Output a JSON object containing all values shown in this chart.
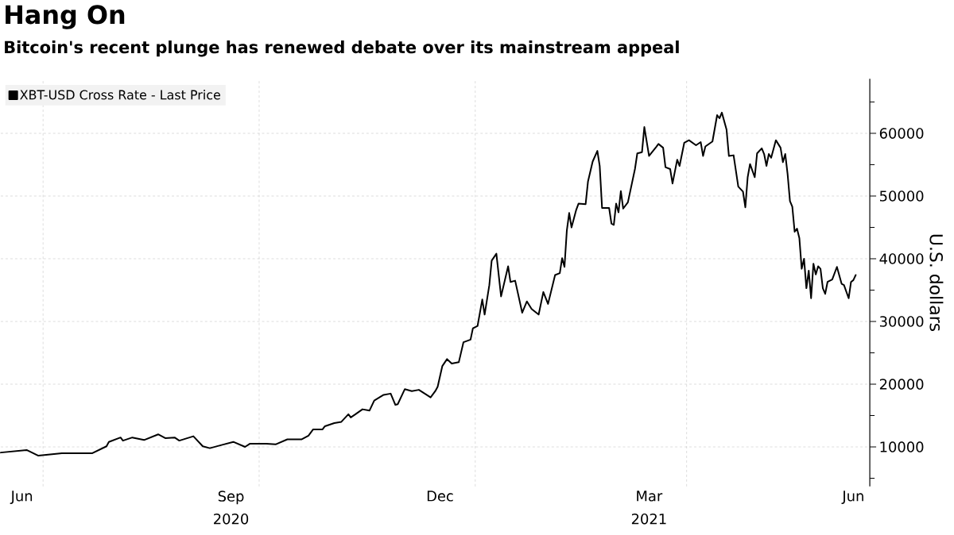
{
  "chart_data": {
    "type": "line",
    "title": "Hang On",
    "subtitle": "Bitcoin's recent plunge has renewed debate over its mainstream appeal",
    "ylabel": "U.S. dollars",
    "annotations": [
      "2020",
      "2021"
    ],
    "x": [
      "2020-06-13",
      "2020-06-24",
      "2020-06-29",
      "2020-07-09",
      "2020-07-22",
      "2020-07-28",
      "2020-07-29",
      "2020-08-03",
      "2020-08-04",
      "2020-08-08",
      "2020-08-13",
      "2020-08-19",
      "2020-08-22",
      "2020-08-26",
      "2020-08-28",
      "2020-09-03",
      "2020-09-07",
      "2020-09-10",
      "2020-09-15",
      "2020-09-20",
      "2020-09-25",
      "2020-09-27",
      "2020-10-04",
      "2020-10-08",
      "2020-10-13",
      "2020-10-19",
      "2020-10-22",
      "2020-10-24",
      "2020-10-28",
      "2020-10-29",
      "2020-11-02",
      "2020-11-05",
      "2020-11-08",
      "2020-11-09",
      "2020-11-11",
      "2020-11-14",
      "2020-11-17",
      "2020-11-19",
      "2020-11-23",
      "2020-11-26",
      "2020-11-28",
      "2020-11-29",
      "2020-12-02",
      "2020-12-05",
      "2020-12-08",
      "2020-12-13",
      "2020-12-15",
      "2020-12-16",
      "2020-12-18",
      "2020-12-20",
      "2020-12-22",
      "2020-12-25",
      "2020-12-27",
      "2020-12-30",
      "2020-12-31",
      "2021-01-02",
      "2021-01-04",
      "2021-01-05",
      "2021-01-07",
      "2021-01-08",
      "2021-01-10",
      "2021-01-12",
      "2021-01-15",
      "2021-01-16",
      "2021-01-18",
      "2021-01-21",
      "2021-01-23",
      "2021-01-25",
      "2021-01-28",
      "2021-01-30",
      "2021-02-01",
      "2021-02-04",
      "2021-02-06",
      "2021-02-07",
      "2021-02-08",
      "2021-02-09",
      "2021-02-10",
      "2021-02-11",
      "2021-02-13",
      "2021-02-14",
      "2021-02-17",
      "2021-02-18",
      "2021-02-20",
      "2021-02-22",
      "2021-02-23",
      "2021-02-24",
      "2021-02-27",
      "2021-02-28",
      "2021-03-01",
      "2021-03-02",
      "2021-03-03",
      "2021-03-04",
      "2021-03-05",
      "2021-03-07",
      "2021-03-10",
      "2021-03-11",
      "2021-03-13",
      "2021-03-14",
      "2021-03-16",
      "2021-03-19",
      "2021-03-20",
      "2021-03-22",
      "2021-03-23",
      "2021-03-25",
      "2021-03-26",
      "2021-03-28",
      "2021-03-29",
      "2021-03-31",
      "2021-04-02",
      "2021-04-05",
      "2021-04-07",
      "2021-04-08",
      "2021-04-09",
      "2021-04-12",
      "2021-04-14",
      "2021-04-15",
      "2021-04-16",
      "2021-04-18",
      "2021-04-19",
      "2021-04-21",
      "2021-04-23",
      "2021-04-25",
      "2021-04-26",
      "2021-04-27",
      "2021-04-28",
      "2021-04-30",
      "2021-05-01",
      "2021-05-03",
      "2021-05-04",
      "2021-05-05",
      "2021-05-06",
      "2021-05-07",
      "2021-05-09",
      "2021-05-11",
      "2021-05-12",
      "2021-05-13",
      "2021-05-14",
      "2021-05-15",
      "2021-05-16",
      "2021-05-17",
      "2021-05-18",
      "2021-05-19",
      "2021-05-20",
      "2021-05-21",
      "2021-05-22",
      "2021-05-23",
      "2021-05-24",
      "2021-05-25",
      "2021-05-26",
      "2021-05-27",
      "2021-05-28",
      "2021-05-29",
      "2021-05-30",
      "2021-05-31",
      "2021-06-02",
      "2021-06-04",
      "2021-06-06",
      "2021-06-07",
      "2021-06-09",
      "2021-06-10",
      "2021-06-11",
      "2021-06-12"
    ],
    "series": [
      {
        "name": "XBT-USD Cross Rate - Last Price",
        "color": "#000000",
        "values": [
          9100,
          9500,
          8600,
          9000,
          9000,
          10100,
          10800,
          11500,
          11000,
          11500,
          11100,
          12000,
          11400,
          11500,
          11000,
          11700,
          10100,
          9800,
          10300,
          10800,
          10000,
          10500,
          10500,
          10400,
          11200,
          11200,
          11800,
          12800,
          12800,
          13300,
          13800,
          14000,
          15200,
          14700,
          15200,
          16000,
          15800,
          17400,
          18300,
          18500,
          16700,
          16800,
          19200,
          18900,
          19100,
          17900,
          18900,
          19600,
          22900,
          24000,
          23300,
          23500,
          26700,
          27100,
          28900,
          29300,
          33500,
          31100,
          35800,
          39700,
          40800,
          34000,
          38800,
          36300,
          36500,
          31400,
          33200,
          32000,
          31100,
          34700,
          32800,
          37400,
          37700,
          40100,
          38700,
          44500,
          47300,
          45000,
          47800,
          48800,
          48700,
          52300,
          55500,
          57200,
          54800,
          48100,
          48100,
          45600,
          45400,
          48800,
          47400,
          50800,
          48000,
          49000,
          54300,
          56800,
          57000,
          61000,
          56400,
          57800,
          58300,
          57700,
          54600,
          54300,
          52000,
          55800,
          54800,
          58500,
          58900,
          58100,
          58600,
          56400,
          57900,
          58700,
          62900,
          62400,
          63300,
          60600,
          56400,
          56500,
          51500,
          50700,
          48200,
          53000,
          55100,
          53000,
          56800,
          57600,
          56700,
          54800,
          56700,
          56100,
          58900,
          57700,
          55400,
          56700,
          53500,
          49200,
          48300,
          44300,
          44800,
          43300,
          38400,
          40000,
          35300,
          38100,
          33700,
          39200,
          37500,
          38800,
          38400,
          35300,
          34400,
          36300,
          36700,
          38700,
          36000,
          35800,
          33700,
          36300,
          36600,
          37400
        ]
      }
    ],
    "xlim": [
      "2020-06-13",
      "2021-06-18"
    ],
    "xticks": [
      {
        "value": "2020-06-22",
        "label": "Jun"
      },
      {
        "value": "2020-07-01",
        "label": null
      },
      {
        "value": "2020-09-19",
        "label": "Sep"
      },
      {
        "value": "2020-10-01",
        "label": null
      },
      {
        "value": "2020-12-17",
        "label": "Dec"
      },
      {
        "value": "2021-01-01",
        "label": null
      },
      {
        "value": "2021-03-16",
        "label": "Mar"
      },
      {
        "value": "2021-04-01",
        "label": null
      },
      {
        "value": "2021-06-11",
        "label": "Jun"
      }
    ],
    "ylim": [
      3700,
      68700
    ],
    "yticks": [
      {
        "value": 5000,
        "label": null
      },
      10000,
      {
        "value": 15000,
        "label": null
      },
      20000,
      {
        "value": 25000,
        "label": null
      },
      30000,
      {
        "value": 35000,
        "label": null
      },
      40000,
      {
        "value": 45000,
        "label": null
      },
      50000,
      {
        "value": 55000,
        "label": null
      },
      60000,
      {
        "value": 65000,
        "label": null
      }
    ],
    "grid": true,
    "legend": "top left",
    "marker": "none",
    "line_style": "solid"
  }
}
